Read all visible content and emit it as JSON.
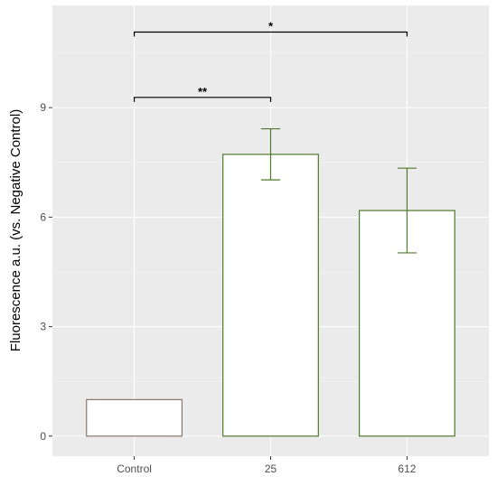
{
  "chart_data": {
    "type": "bar",
    "title": "",
    "xlabel": "",
    "ylabel": "Fluorescence a.u. (vs. Negative Control)",
    "categories": [
      "Control",
      "25",
      "612"
    ],
    "values": [
      1.0,
      7.72,
      6.18
    ],
    "error_low": [
      1.0,
      7.02,
      5.02
    ],
    "error_high": [
      1.0,
      8.42,
      7.34
    ],
    "bar_fill": "#ffffff",
    "bar_colors": [
      "#8c7566",
      "#4f7a2a",
      "#4f7a2a"
    ],
    "ylim": [
      -0.55,
      11.8
    ],
    "yticks": [
      0,
      3,
      6,
      9
    ],
    "ytick_labels": [
      "0",
      "3",
      "6",
      "9"
    ],
    "grid": true,
    "significance": [
      {
        "from": 0,
        "to": 1,
        "y": 9.28,
        "label": "**"
      },
      {
        "from": 0,
        "to": 2,
        "y": 11.07,
        "label": "*"
      }
    ]
  }
}
